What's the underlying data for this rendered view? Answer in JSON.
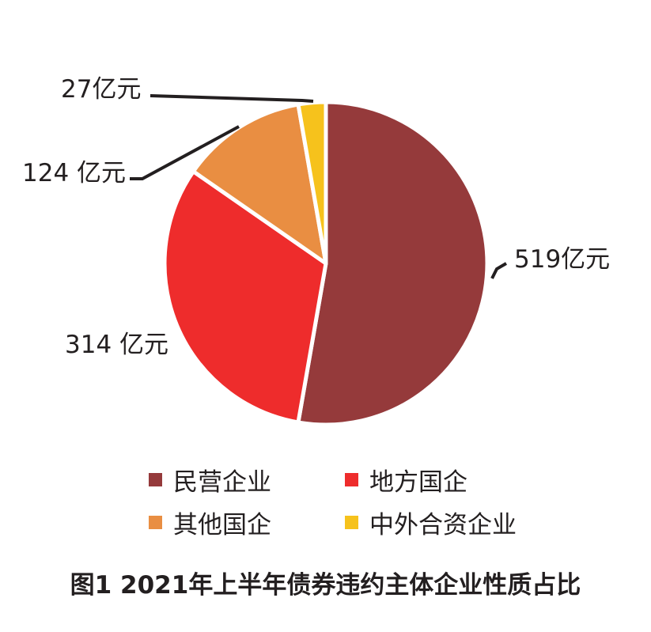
{
  "chart_data": {
    "type": "pie",
    "title": "图1  2021年上半年债券违约主体企业性质占比",
    "unit": "亿元",
    "slices": [
      {
        "name": "民营企业",
        "value": 519,
        "label": "519亿元",
        "color": "#953a3b"
      },
      {
        "name": "地方国企",
        "value": 314,
        "label": "314 亿元",
        "color": "#ee2c2c"
      },
      {
        "name": "其他国企",
        "value": 124,
        "label": "124 亿元",
        "color": "#e98e42"
      },
      {
        "name": "中外合资企业",
        "value": 27,
        "label": "27亿元",
        "color": "#f6c21c"
      }
    ],
    "start": "12 o'clock",
    "direction": "clockwise",
    "legend_position": "bottom"
  }
}
